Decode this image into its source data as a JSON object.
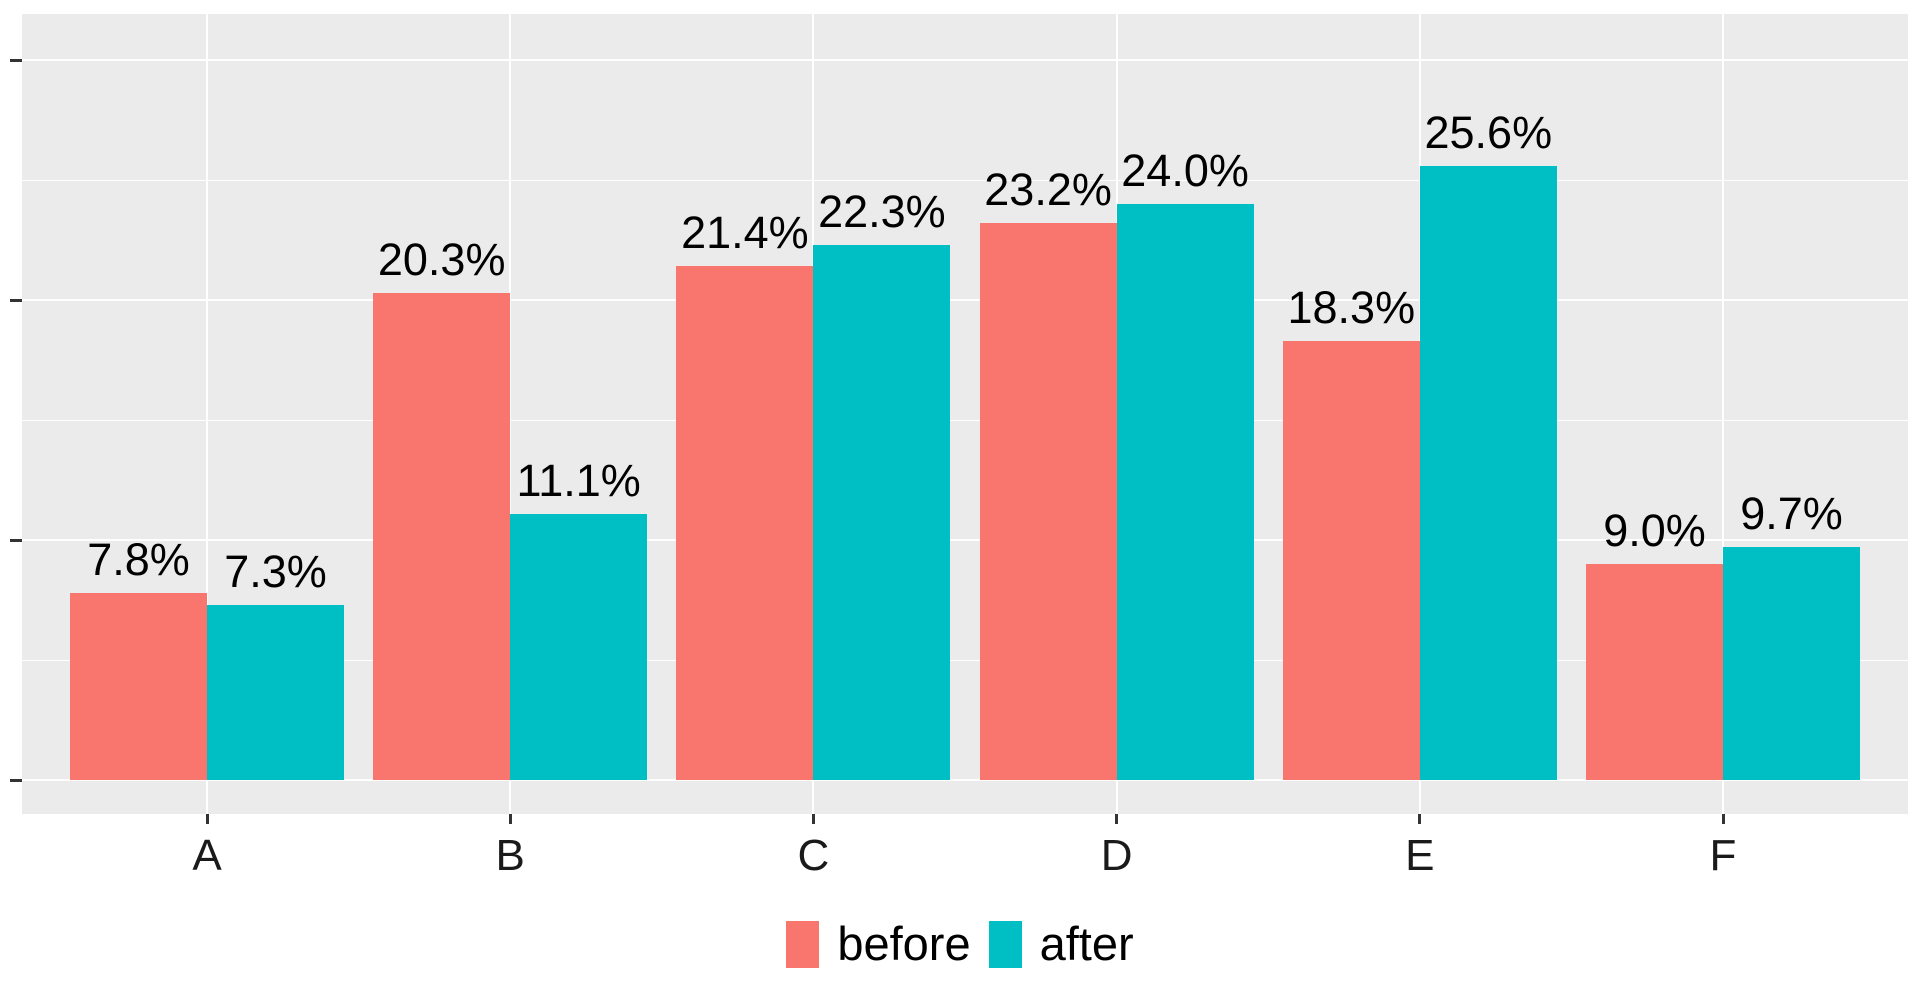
{
  "chart_data": {
    "type": "bar",
    "title": "",
    "xlabel": "",
    "ylabel": "",
    "categories": [
      "A",
      "B",
      "C",
      "D",
      "E",
      "F"
    ],
    "series": [
      {
        "name": "before",
        "color": "#F8766D",
        "values": [
          7.8,
          20.3,
          21.4,
          23.2,
          18.3,
          9.0
        ],
        "labels": [
          "7.8%",
          "20.3%",
          "21.4%",
          "23.2%",
          "18.3%",
          "9.0%"
        ]
      },
      {
        "name": "after",
        "color": "#00BFC4",
        "values": [
          7.3,
          11.1,
          22.3,
          24.0,
          25.6,
          9.7
        ],
        "labels": [
          "7.3%",
          "11.1%",
          "22.3%",
          "24.0%",
          "25.6%",
          "9.7%"
        ]
      }
    ],
    "ylim": [
      0,
      31.9
    ],
    "y_major_ticks": [
      0,
      10,
      20,
      30
    ],
    "y_minor_ticks": [
      5,
      15,
      25
    ],
    "y_tick_labels_shown": false,
    "grid": true,
    "legend_position": "bottom",
    "style": {
      "panel_bg": "#EBEBEB",
      "grid_major_color": "#FFFFFF",
      "grid_minor_color": "#FFFFFF",
      "tick_color": "#333333",
      "bar_label_color": "#000000",
      "axis_text_color": "#1A1A1A"
    }
  },
  "legend": {
    "items": [
      {
        "label": "before",
        "color": "#F8766D"
      },
      {
        "label": "after",
        "color": "#00BFC4"
      }
    ]
  }
}
